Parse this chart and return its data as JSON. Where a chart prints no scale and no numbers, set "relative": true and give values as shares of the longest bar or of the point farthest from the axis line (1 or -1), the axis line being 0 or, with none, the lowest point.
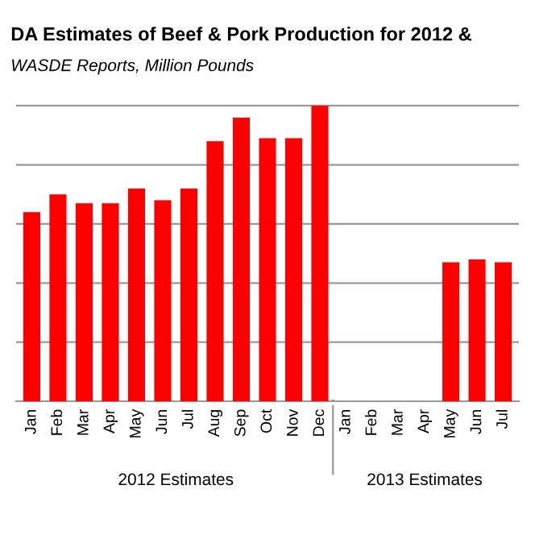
{
  "chart_data": {
    "type": "bar",
    "title": "DA Estimates of Beef & Pork Production for 2012 &",
    "subtitle": "WASDE Reports, Million Pounds",
    "relative": true,
    "grid": "y",
    "color": "#ff0000",
    "categories": [
      "Jan",
      "Feb",
      "Mar",
      "Apr",
      "May",
      "Jun",
      "Jul",
      "Aug",
      "Sep",
      "Oct",
      "Nov",
      "Dec",
      "Jan",
      "Feb",
      "Mar",
      "Apr",
      "May",
      "Jun",
      "Jul"
    ],
    "values": [
      0.64,
      0.7,
      0.67,
      0.67,
      0.72,
      0.68,
      0.72,
      0.88,
      0.96,
      0.89,
      0.89,
      1.0,
      null,
      null,
      null,
      null,
      0.47,
      0.48,
      0.47
    ],
    "annotations": [
      "2012 Estimates",
      "2013 Estimates"
    ]
  }
}
